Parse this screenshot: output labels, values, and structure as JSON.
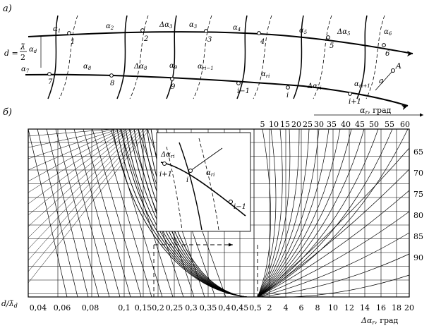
{
  "part_a": {
    "label": "а)",
    "d_label": "d =",
    "lambda_bar": "λ̄",
    "fraction_den": "2",
    "alpha_d": "α",
    "alpha_d_sub": "d",
    "upper_labels": [
      {
        "sym": "α",
        "sub": "1"
      },
      {
        "sym": "α",
        "sub": "2"
      },
      {
        "sym": "Δα",
        "sub": "3"
      },
      {
        "sym": "α",
        "sub": "3"
      },
      {
        "sym": "α",
        "sub": "4"
      },
      {
        "sym": "α",
        "sub": "5"
      },
      {
        "sym": "Δα",
        "sub": "5"
      },
      {
        "sym": "α",
        "sub": "6"
      }
    ],
    "upper_points": [
      "1",
      "2",
      "3",
      "4",
      "5",
      "6"
    ],
    "lower_labels": [
      {
        "sym": "α",
        "sub": "7"
      },
      {
        "sym": "α",
        "sub": "8"
      },
      {
        "sym": "Δα",
        "sub": "8"
      },
      {
        "sym": "α",
        "sub": "9"
      },
      {
        "sym": "α",
        "sub": "ri−1"
      },
      {
        "sym": "α",
        "sub": "ri"
      },
      {
        "sym": "Δα",
        "sub": "ri"
      },
      {
        "sym": "α",
        "sub": "ri+1"
      }
    ],
    "lower_points": [
      "7",
      "8",
      "9",
      "i−1",
      "i",
      "i+1"
    ],
    "point_A": "A",
    "a_label": "a"
  },
  "part_b": {
    "label": "б)",
    "top_axis_title": "α",
    "top_axis_title_sub": "r",
    "top_axis_unit": ", град",
    "top_ticks": [
      "5",
      "10",
      "15",
      "20",
      "25",
      "30",
      "35",
      "40",
      "45",
      "50",
      "55",
      "60"
    ],
    "right_ticks": [
      "65",
      "70",
      "75",
      "80",
      "85",
      "90"
    ],
    "bottom_left_title": "d/λ̄",
    "bottom_left_title_sub": "d",
    "bottom_left_ticks": [
      "0,04",
      "0,06",
      "0,08",
      "0,1",
      "0,15",
      "0,2",
      "0,25",
      "0,3",
      "0,35",
      "0,4",
      "0,45",
      "0,5"
    ],
    "bottom_right_ticks": [
      "2",
      "4",
      "6",
      "8",
      "10",
      "12",
      "14",
      "16",
      "18",
      "20"
    ],
    "bottom_right_title": "Δα",
    "bottom_right_title_sub": "r",
    "bottom_right_unit": ", град",
    "inset": {
      "delta_alpha": "Δα",
      "delta_alpha_sub": "ri",
      "alpha": "α",
      "alpha_sub": "ri",
      "pt_left": "i+1",
      "pt_mid": "i",
      "pt_right": "i−1"
    }
  }
}
